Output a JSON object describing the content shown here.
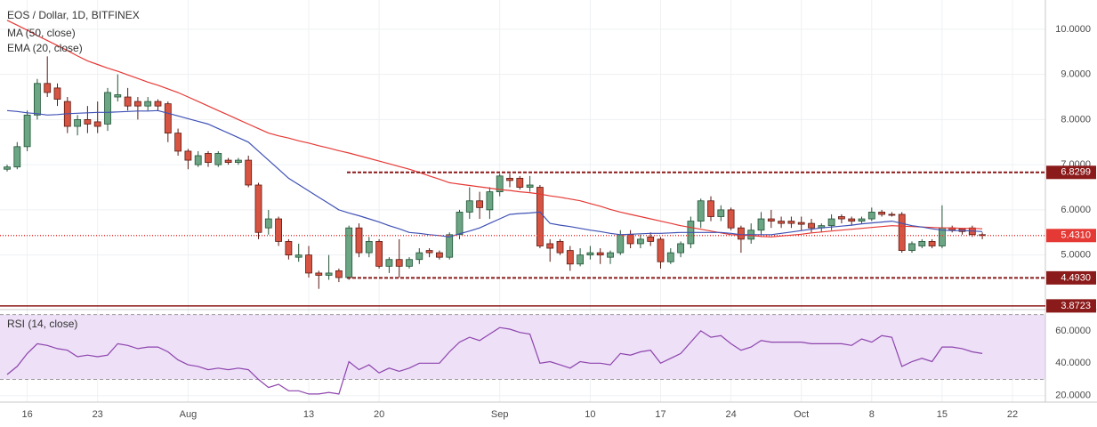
{
  "chart_data": {
    "type": "candlestick",
    "title": "EOS / Dollar, 1D, BITFINEX",
    "up_color": "#6ba583",
    "up_border": "#225437",
    "down_color": "#d75442",
    "down_border": "#5b1a13",
    "open": [
      6.9,
      6.95,
      7.4,
      8.1,
      8.8,
      8.7,
      8.4,
      7.85,
      8.0,
      7.95,
      7.9,
      8.5,
      8.5,
      8.4,
      8.3,
      8.4,
      8.35,
      7.7,
      7.3,
      7.0,
      7.25,
      7.0,
      7.1,
      7.05,
      7.1,
      6.55,
      5.6,
      5.8,
      5.3,
      4.95,
      5.0,
      4.6,
      4.55,
      4.65,
      4.5,
      5.6,
      5.05,
      5.3,
      4.75,
      4.9,
      4.75,
      4.9,
      5.1,
      5.05,
      4.95,
      5.45,
      5.95,
      6.2,
      6.0,
      6.4,
      6.7,
      6.7,
      6.5,
      6.5,
      5.25,
      5.3,
      5.1,
      4.8,
      5.0,
      5.05,
      4.95,
      5.05,
      5.45,
      5.25,
      5.4,
      5.35,
      4.85,
      5.05,
      5.25,
      5.75,
      6.2,
      5.85,
      6.0,
      5.6,
      5.35,
      5.55,
      5.8,
      5.75,
      5.75,
      5.72,
      5.7,
      5.6,
      5.65,
      5.85,
      5.8,
      5.75,
      5.8,
      5.95,
      5.9,
      5.9,
      5.1,
      5.2,
      5.3,
      5.2,
      5.6,
      5.58,
      5.6,
      5.45
    ],
    "high": [
      7.0,
      7.5,
      8.2,
      8.9,
      9.4,
      8.8,
      8.5,
      8.1,
      8.3,
      8.4,
      8.7,
      9.0,
      8.7,
      8.5,
      8.5,
      8.45,
      8.4,
      7.8,
      7.35,
      7.3,
      7.3,
      7.3,
      7.15,
      7.15,
      7.2,
      6.6,
      6.0,
      5.85,
      5.35,
      5.25,
      5.2,
      4.65,
      5.0,
      4.7,
      5.65,
      5.7,
      5.4,
      5.35,
      4.95,
      5.35,
      4.95,
      5.15,
      5.15,
      5.1,
      5.5,
      6.0,
      6.5,
      6.4,
      6.5,
      6.8,
      6.8,
      6.75,
      6.75,
      6.55,
      5.35,
      5.35,
      5.2,
      5.15,
      5.2,
      5.15,
      5.1,
      5.55,
      5.55,
      5.45,
      5.5,
      5.4,
      5.15,
      5.3,
      5.85,
      6.25,
      6.3,
      6.1,
      6.05,
      5.65,
      5.7,
      5.95,
      6.0,
      5.85,
      5.85,
      5.85,
      5.8,
      5.7,
      5.9,
      5.9,
      5.85,
      5.85,
      6.05,
      6.0,
      5.95,
      5.95,
      5.3,
      5.35,
      5.35,
      6.1,
      5.65,
      5.6,
      5.65,
      5.5
    ],
    "low": [
      6.85,
      6.9,
      7.3,
      8.0,
      8.5,
      8.3,
      7.7,
      7.65,
      7.7,
      7.7,
      7.75,
      8.4,
      8.2,
      8.0,
      8.2,
      8.2,
      7.5,
      7.2,
      6.9,
      6.95,
      6.95,
      6.95,
      7.0,
      7.0,
      6.5,
      5.35,
      5.45,
      5.2,
      4.9,
      4.85,
      4.5,
      4.25,
      4.45,
      4.4,
      4.45,
      4.95,
      4.95,
      4.7,
      4.6,
      4.5,
      4.7,
      4.8,
      4.95,
      4.9,
      4.9,
      5.35,
      5.8,
      5.8,
      5.8,
      6.3,
      6.5,
      6.45,
      6.4,
      5.15,
      4.85,
      5.0,
      4.65,
      4.75,
      4.9,
      4.8,
      4.8,
      5.0,
      5.15,
      5.15,
      5.2,
      4.7,
      4.8,
      4.95,
      5.15,
      5.6,
      5.75,
      5.75,
      5.55,
      5.05,
      5.25,
      5.4,
      5.6,
      5.6,
      5.6,
      5.55,
      5.5,
      5.5,
      5.55,
      5.7,
      5.65,
      5.7,
      5.75,
      5.85,
      5.85,
      5.05,
      5.05,
      5.15,
      5.15,
      5.15,
      5.5,
      5.45,
      5.4,
      5.35
    ],
    "close": [
      6.95,
      7.4,
      8.1,
      8.8,
      8.6,
      8.45,
      7.85,
      8.0,
      7.9,
      7.85,
      8.6,
      8.55,
      8.3,
      8.3,
      8.4,
      8.3,
      7.7,
      7.3,
      7.1,
      7.2,
      7.05,
      7.25,
      7.05,
      7.1,
      6.55,
      5.5,
      5.8,
      5.3,
      5.0,
      5.0,
      4.6,
      4.55,
      4.6,
      4.5,
      5.6,
      5.05,
      5.3,
      4.75,
      4.9,
      4.75,
      4.9,
      5.05,
      5.05,
      4.95,
      5.45,
      5.95,
      6.2,
      6.05,
      6.4,
      6.75,
      6.65,
      6.5,
      6.55,
      5.2,
      5.15,
      5.05,
      4.8,
      5.0,
      5.05,
      5.0,
      5.05,
      5.45,
      5.25,
      5.35,
      5.3,
      4.85,
      5.05,
      5.25,
      5.75,
      6.2,
      5.85,
      6.0,
      5.6,
      5.35,
      5.55,
      5.8,
      5.75,
      5.7,
      5.7,
      5.68,
      5.6,
      5.65,
      5.8,
      5.8,
      5.75,
      5.8,
      5.95,
      5.9,
      5.88,
      5.1,
      5.25,
      5.3,
      5.2,
      5.6,
      5.55,
      5.52,
      5.45,
      5.43
    ],
    "series": [
      {
        "name": "MA (50, close)",
        "color": "#e53935",
        "values": [
          10.2,
          10.09,
          9.98,
          9.86,
          9.75,
          9.64,
          9.53,
          9.41,
          9.3,
          9.22,
          9.14,
          9.07,
          8.99,
          8.91,
          8.83,
          8.76,
          8.68,
          8.6,
          8.5,
          8.4,
          8.3,
          8.2,
          8.1,
          8.0,
          7.9,
          7.8,
          7.7,
          7.64,
          7.59,
          7.53,
          7.48,
          7.42,
          7.37,
          7.31,
          7.26,
          7.2,
          7.14,
          7.08,
          7.02,
          6.96,
          6.9,
          6.83,
          6.75,
          6.68,
          6.6,
          6.57,
          6.54,
          6.51,
          6.48,
          6.45,
          6.43,
          6.4,
          6.38,
          6.35,
          6.31,
          6.28,
          6.24,
          6.2,
          6.14,
          6.08,
          6.01,
          5.95,
          5.9,
          5.85,
          5.8,
          5.75,
          5.7,
          5.65,
          5.61,
          5.57,
          5.53,
          5.49,
          5.45,
          5.44,
          5.43,
          5.41,
          5.4,
          5.42,
          5.44,
          5.46,
          5.49,
          5.51,
          5.53,
          5.55,
          5.57,
          5.59,
          5.61,
          5.63,
          5.65,
          5.64,
          5.63,
          5.62,
          5.61,
          5.6,
          5.6,
          5.59,
          5.59,
          5.58
        ]
      },
      {
        "name": "EMA (20, close)",
        "color": "#3f51b5",
        "values": [
          8.2,
          8.18,
          8.15,
          8.13,
          8.1,
          8.11,
          8.13,
          8.14,
          8.15,
          8.16,
          8.16,
          8.17,
          8.18,
          8.19,
          8.19,
          8.2,
          8.14,
          8.08,
          8.02,
          7.96,
          7.9,
          7.8,
          7.7,
          7.6,
          7.5,
          7.3,
          7.1,
          6.9,
          6.7,
          6.56,
          6.42,
          6.28,
          6.14,
          6.0,
          5.93,
          5.87,
          5.8,
          5.73,
          5.65,
          5.58,
          5.5,
          5.48,
          5.45,
          5.43,
          5.4,
          5.47,
          5.53,
          5.6,
          5.7,
          5.8,
          5.9,
          5.92,
          5.93,
          5.95,
          5.7,
          5.66,
          5.63,
          5.59,
          5.55,
          5.52,
          5.48,
          5.45,
          5.46,
          5.47,
          5.48,
          5.48,
          5.49,
          5.5,
          5.5,
          5.5,
          5.5,
          5.5,
          5.48,
          5.45,
          5.45,
          5.45,
          5.45,
          5.48,
          5.51,
          5.54,
          5.57,
          5.6,
          5.62,
          5.64,
          5.66,
          5.69,
          5.71,
          5.73,
          5.75,
          5.7,
          5.65,
          5.62,
          5.58,
          5.55,
          5.54,
          5.54,
          5.53,
          5.52
        ]
      }
    ],
    "ylim": [
      3.85,
      10.55
    ],
    "yticks": [
      {
        "value": 5,
        "label": "5.0000"
      },
      {
        "value": 6,
        "label": "6.0000"
      },
      {
        "value": 7,
        "label": "7.0000"
      },
      {
        "value": 8,
        "label": "8.0000"
      },
      {
        "value": 9,
        "label": "9.0000"
      },
      {
        "value": 10,
        "label": "10.0000"
      }
    ],
    "xticks": [
      {
        "value": 2,
        "label": "16"
      },
      {
        "value": 9,
        "label": "23"
      },
      {
        "value": 18,
        "label": "Aug"
      },
      {
        "value": 30,
        "label": "13"
      },
      {
        "value": 37,
        "label": "20"
      },
      {
        "value": 49,
        "label": "Sep"
      },
      {
        "value": 58,
        "label": "10"
      },
      {
        "value": 65,
        "label": "17"
      },
      {
        "value": 72,
        "label": "24"
      },
      {
        "value": 79,
        "label": "Oct"
      },
      {
        "value": 86,
        "label": "8"
      },
      {
        "value": 93,
        "label": "15"
      },
      {
        "value": 100,
        "label": "22"
      }
    ],
    "levels": [
      {
        "value": 6.8299,
        "color": "#8b1a1a",
        "style": "dashed"
      },
      {
        "value": 4.493,
        "label": "4.4930",
        "color": "#8b1a1a",
        "style": "dashed"
      },
      {
        "value": 3.8723,
        "color": "#8b1a1a",
        "style": "solid"
      },
      {
        "value": 5.431,
        "label": "5.4310",
        "color": "#e53935",
        "style": "dotted"
      }
    ],
    "grid": true,
    "rsi": {
      "name": "RSI (14, close)",
      "color": "#8e44ad",
      "band_color": "#ede0f7",
      "values": [
        33,
        38,
        46,
        52,
        51,
        49,
        48,
        44,
        45,
        44,
        45,
        52,
        51,
        49,
        50,
        50,
        47,
        42,
        39,
        38,
        36,
        37,
        36,
        37,
        36,
        30,
        25,
        27,
        23,
        23,
        21,
        21,
        22,
        21,
        41,
        36,
        39,
        34,
        37,
        35,
        37,
        40,
        40,
        40,
        47,
        53,
        56,
        54,
        58,
        62,
        61,
        59,
        58,
        40,
        41,
        39,
        37,
        41,
        40,
        40,
        39,
        46,
        45,
        47,
        48,
        40,
        43,
        46,
        53,
        60,
        56,
        57,
        52,
        48,
        50,
        54,
        53,
        53,
        53,
        53,
        52,
        52,
        52,
        52,
        51,
        55,
        53,
        57,
        56,
        38,
        41,
        43,
        41,
        50,
        50,
        49,
        47,
        46
      ],
      "ylim": [
        16,
        72
      ],
      "yticks": [
        {
          "value": 20,
          "label": "20.0000"
        },
        {
          "value": 40,
          "label": "40.0000"
        },
        {
          "value": 60,
          "label": "60.0000"
        }
      ],
      "bands": [
        30,
        70
      ]
    }
  }
}
